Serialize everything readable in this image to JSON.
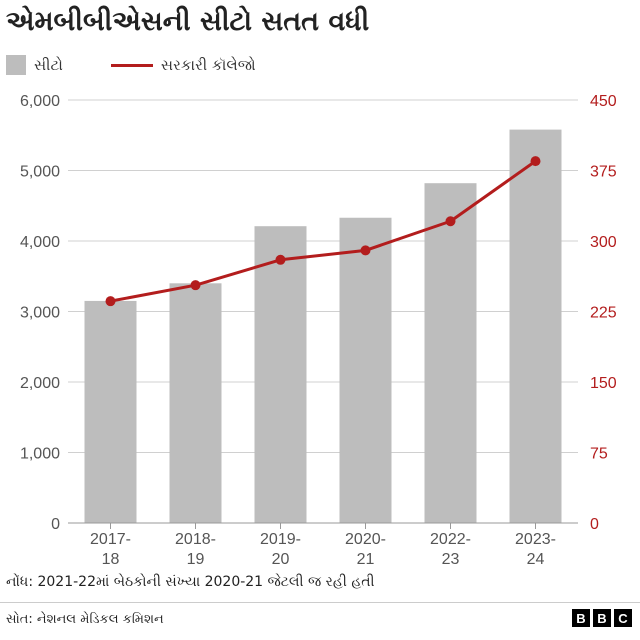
{
  "title": "એમબીબીએસની સીટો સતત વધી",
  "legend": {
    "bars_label": "સીટો",
    "line_label": "સરકારી કૉલેજો"
  },
  "note": "નોંધ: 2021-22માં બેઠકોની સંખ્યા 2020-21 જેટલી જ રહી હતી",
  "source": "સોત: નેશનલ મેડિકલ કમિશન",
  "logo": [
    "B",
    "B",
    "C"
  ],
  "colors": {
    "bars": "#bdbdbd",
    "line": "#b31d1d",
    "left_axis_text": "#555555",
    "right_axis_text": "#b31d1d",
    "grid": "#d0d0d0"
  },
  "chart_data": {
    "type": "bar",
    "categories": [
      [
        "2017-",
        "18"
      ],
      [
        "2018-",
        "19"
      ],
      [
        "2019-",
        "20"
      ],
      [
        "2020-",
        "21"
      ],
      [
        "2022-",
        "23"
      ],
      [
        "2023-",
        "24"
      ]
    ],
    "series": [
      {
        "name": "સીટો",
        "type": "bar",
        "axis": "left",
        "values": [
          3150,
          3400,
          4210,
          4330,
          4820,
          5580
        ]
      },
      {
        "name": "સરકારી કૉલેજો",
        "type": "line",
        "axis": "right",
        "values": [
          236,
          253,
          280,
          290,
          321,
          385
        ]
      }
    ],
    "y_left": {
      "ylim": [
        0,
        6000
      ],
      "ticks": [
        "0",
        "1,000",
        "2,000",
        "3,000",
        "4,000",
        "5,000",
        "6,000"
      ]
    },
    "y_right": {
      "ylim": [
        0,
        450
      ],
      "ticks": [
        "0",
        "75",
        "150",
        "225",
        "300",
        "375",
        "450"
      ]
    },
    "grid": true,
    "legend_position": "top-left"
  }
}
